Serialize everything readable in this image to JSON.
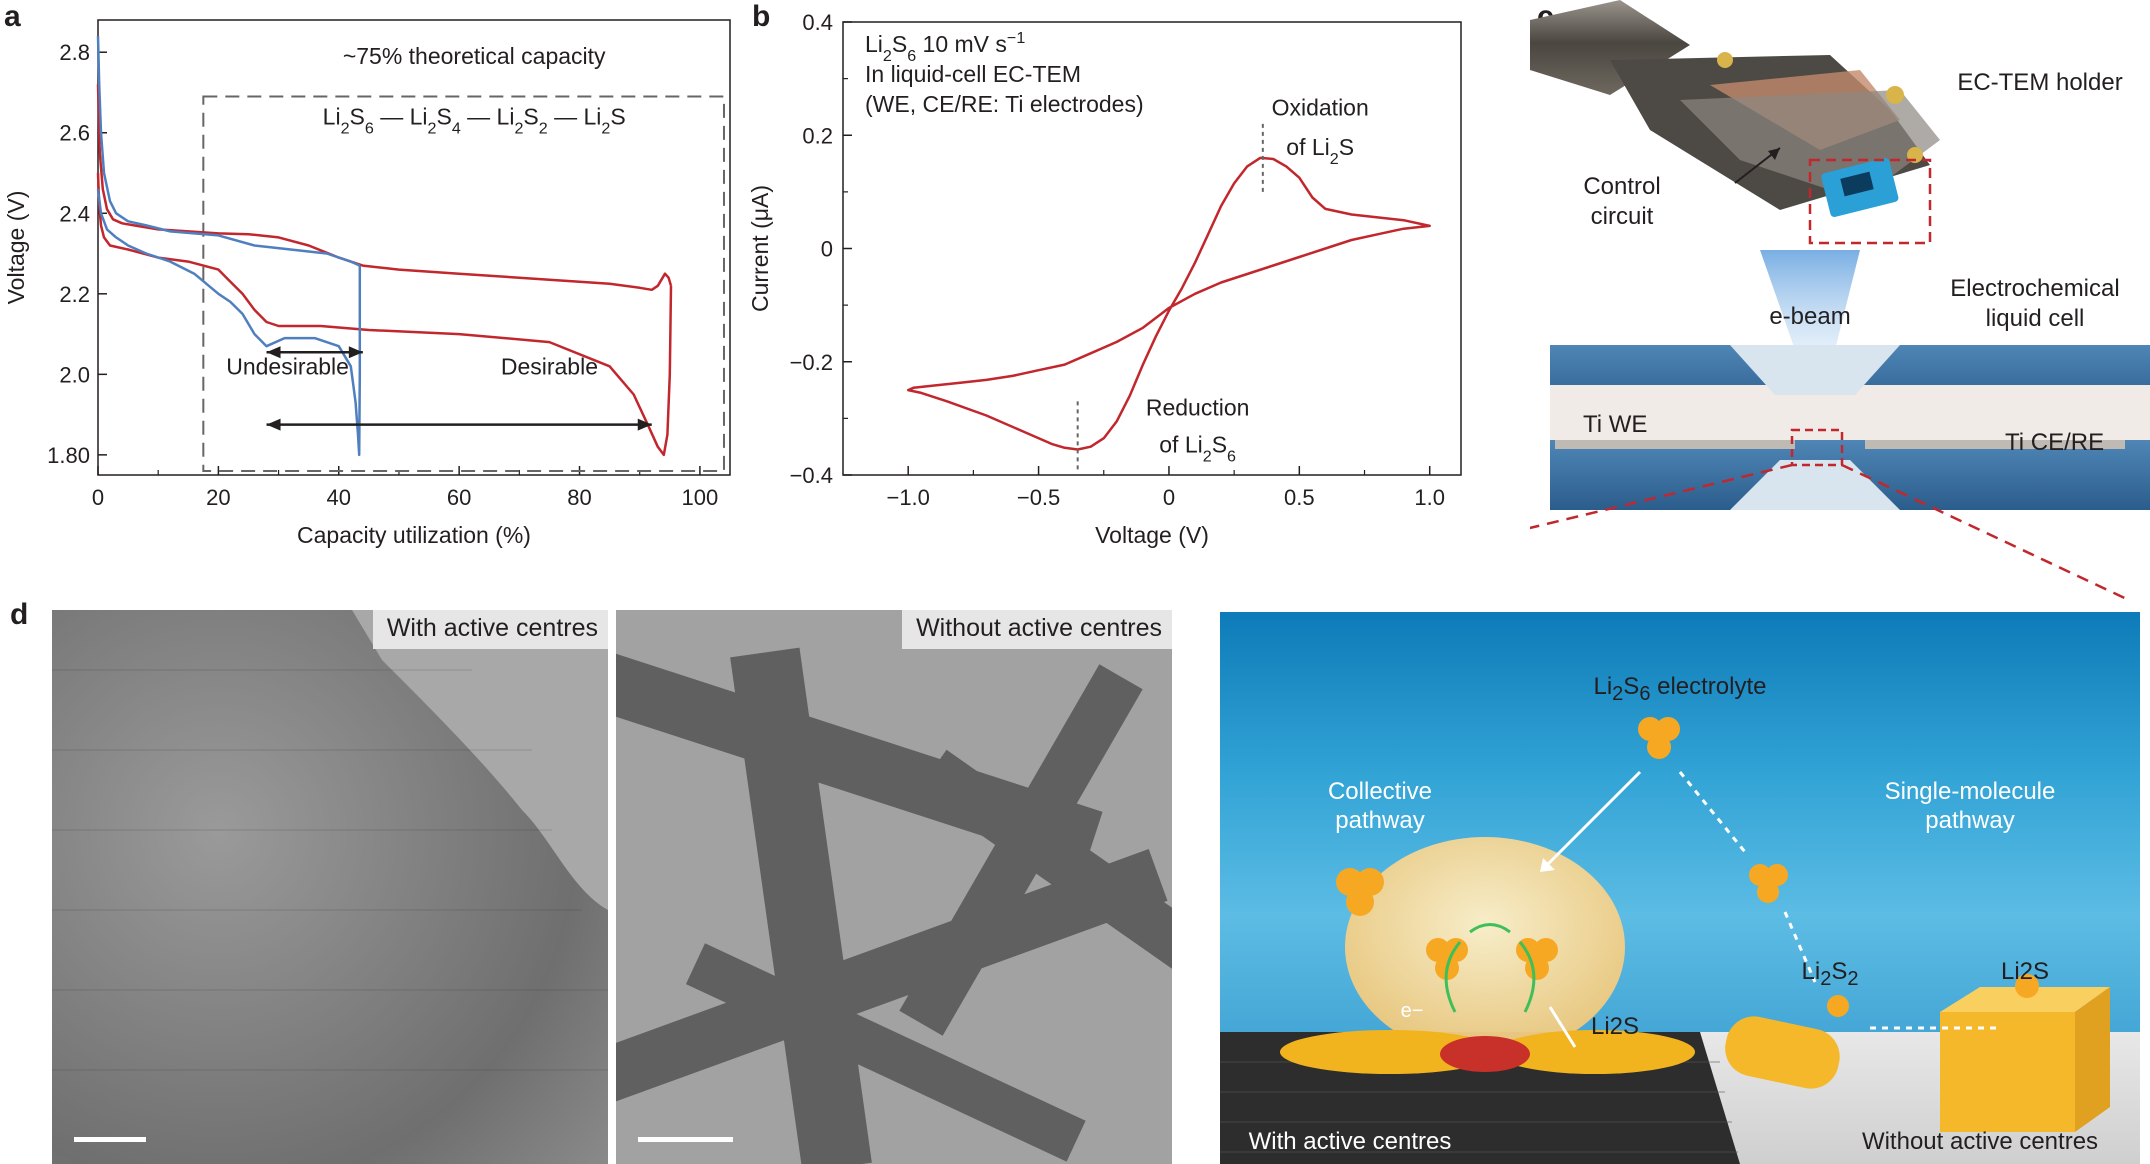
{
  "panels": {
    "a": {
      "letter": "a"
    },
    "b": {
      "letter": "b"
    },
    "c": {
      "letter": "c"
    },
    "d": {
      "letter": "d"
    }
  },
  "chart_data": [
    {
      "panel": "a",
      "type": "line",
      "xlabel": "Capacity utilization (%)",
      "ylabel": "Voltage (V)",
      "xlim": [
        0,
        105
      ],
      "ylim": [
        1.75,
        2.88
      ],
      "xticks": [
        0,
        20,
        40,
        60,
        80,
        100
      ],
      "yticks": [
        1.8,
        2.0,
        2.2,
        2.4,
        2.6,
        2.8
      ],
      "xtick_labels": [
        "0",
        "20",
        "40",
        "60",
        "80",
        "100"
      ],
      "ytick_labels": [
        "1.80",
        "2.0",
        "2.2",
        "2.4",
        "2.6",
        "2.8"
      ],
      "colors": {
        "red": "#c1272d",
        "blue": "#4f7fbf"
      },
      "series": [
        {
          "color": "red",
          "x": [
            0,
            0.3,
            0.8,
            1.5,
            2.5,
            4,
            6,
            10,
            15,
            20,
            25,
            30,
            35,
            40,
            44,
            50,
            60,
            70,
            80,
            85,
            90,
            92,
            93,
            94.2,
            94.8,
            95.2
          ],
          "y": [
            2.72,
            2.55,
            2.46,
            2.41,
            2.385,
            2.375,
            2.37,
            2.36,
            2.355,
            2.35,
            2.348,
            2.34,
            2.32,
            2.29,
            2.27,
            2.26,
            2.25,
            2.24,
            2.23,
            2.225,
            2.215,
            2.21,
            2.22,
            2.25,
            2.24,
            2.22
          ]
        },
        {
          "color": "red",
          "x": [
            95.2,
            95.0,
            94.6,
            94.0,
            93.0,
            91.5,
            89,
            85,
            75,
            60,
            45,
            37,
            32,
            30,
            28,
            26,
            24,
            22,
            20,
            15,
            10,
            5,
            2,
            1,
            0.5,
            0.2,
            0
          ],
          "y": [
            2.22,
            2.0,
            1.85,
            1.8,
            1.82,
            1.87,
            1.95,
            2.02,
            2.08,
            2.1,
            2.11,
            2.12,
            2.12,
            2.12,
            2.13,
            2.16,
            2.2,
            2.23,
            2.26,
            2.28,
            2.29,
            2.31,
            2.32,
            2.34,
            2.37,
            2.42,
            2.5
          ]
        },
        {
          "color": "blue",
          "x": [
            0,
            0.2,
            0.5,
            1,
            2,
            3,
            5,
            8,
            12,
            16,
            20,
            26,
            32,
            38,
            42,
            43.5
          ],
          "y": [
            2.84,
            2.72,
            2.6,
            2.5,
            2.43,
            2.4,
            2.38,
            2.37,
            2.355,
            2.35,
            2.345,
            2.32,
            2.31,
            2.3,
            2.28,
            2.27
          ]
        },
        {
          "color": "blue",
          "x": [
            43.5,
            43.5,
            43.4,
            43.2,
            42.8,
            42,
            40,
            36,
            31,
            28,
            26,
            24,
            22,
            20,
            16,
            12,
            8,
            5,
            3,
            1.5,
            0.5,
            0
          ],
          "y": [
            2.27,
            2.0,
            1.8,
            1.85,
            1.93,
            2.02,
            2.07,
            2.09,
            2.09,
            2.07,
            2.1,
            2.15,
            2.18,
            2.2,
            2.25,
            2.28,
            2.3,
            2.32,
            2.34,
            2.36,
            2.4,
            2.46
          ]
        }
      ],
      "annotations": {
        "theoretical": "~75% theoretical capacity",
        "chain": [
          "Li",
          "2",
          "S",
          "6",
          " — Li",
          "2",
          "S",
          "4",
          " — Li",
          "2",
          "S",
          "2",
          " — Li",
          "2",
          "S"
        ],
        "undesirable": "Undesirable",
        "desirable": "Desirable"
      }
    },
    {
      "panel": "b",
      "type": "line",
      "xlabel": "Voltage (V)",
      "ylabel": "Current (μA)",
      "xlim": [
        -1.25,
        1.12
      ],
      "ylim": [
        -0.4,
        0.4
      ],
      "xticks": [
        -1.0,
        -0.5,
        0,
        0.5,
        1.0
      ],
      "yticks": [
        -0.4,
        -0.2,
        0,
        0.2,
        0.4
      ],
      "xtick_labels": [
        "−1.0",
        "−0.5",
        "0",
        "0.5",
        "1.0"
      ],
      "ytick_labels": [
        "−0.4",
        "−0.2",
        "0",
        "0.2",
        "0.4"
      ],
      "color": "#c1272d",
      "series": [
        {
          "x": [
            1.0,
            0.9,
            0.8,
            0.7,
            0.6,
            0.5,
            0.4,
            0.3,
            0.2,
            0.1,
            0.0,
            -0.1,
            -0.2,
            -0.3,
            -0.4,
            -0.5,
            -0.6,
            -0.7,
            -0.8,
            -0.9,
            -0.98,
            -1.0,
            -0.95,
            -0.85,
            -0.7,
            -0.55,
            -0.45,
            -0.4,
            -0.35,
            -0.3,
            -0.25,
            -0.2,
            -0.15,
            -0.1,
            -0.05,
            0.0,
            0.05,
            0.1,
            0.15,
            0.2,
            0.25,
            0.3,
            0.35,
            0.4,
            0.45,
            0.5,
            0.55,
            0.6,
            0.7,
            0.8,
            0.9,
            1.0
          ],
          "y": [
            0.04,
            0.035,
            0.025,
            0.015,
            0.0,
            -0.015,
            -0.03,
            -0.045,
            -0.06,
            -0.08,
            -0.105,
            -0.14,
            -0.165,
            -0.185,
            -0.205,
            -0.215,
            -0.225,
            -0.232,
            -0.237,
            -0.242,
            -0.246,
            -0.25,
            -0.255,
            -0.27,
            -0.295,
            -0.325,
            -0.345,
            -0.352,
            -0.355,
            -0.35,
            -0.335,
            -0.305,
            -0.26,
            -0.205,
            -0.155,
            -0.11,
            -0.07,
            -0.025,
            0.025,
            0.075,
            0.115,
            0.145,
            0.16,
            0.158,
            0.145,
            0.125,
            0.09,
            0.07,
            0.06,
            0.055,
            0.05,
            0.04
          ]
        }
      ],
      "annotations": {
        "legend_lines": [
          [
            "Li",
            "2",
            "S",
            "6",
            " 10 mV s",
            "−1"
          ],
          "In liquid-cell EC-TEM",
          "(WE, CE/RE: Ti electrodes)"
        ],
        "oxidation": [
          "Oxidation",
          "of Li",
          "2",
          "S"
        ],
        "reduction": [
          "Reduction",
          "of Li",
          "2",
          "S",
          "6"
        ]
      }
    }
  ],
  "panel_c": {
    "holder_label": "EC-TEM holder",
    "control_circuit": [
      "Control",
      "circuit"
    ],
    "liquid_cell": [
      "Electrochemical",
      "liquid cell"
    ],
    "ebeam": "e-beam",
    "ti_we": "Ti WE",
    "ti_cere": "Ti CE/RE"
  },
  "panel_d": {
    "tem_left_label": "With active centres",
    "tem_right_label": "Without active centres",
    "electrolyte": [
      "Li",
      "2",
      "S",
      "6",
      " electrolyte"
    ],
    "collective": [
      "Collective",
      "pathway"
    ],
    "single": [
      "Single-molecule",
      "pathway"
    ],
    "li2s2": [
      "Li",
      "2",
      "S",
      "2"
    ],
    "li2s": "Li2S",
    "li2s_right": "Li2S",
    "electron": "e−",
    "with_label": "With active centres",
    "without_label": "Without active centres"
  }
}
